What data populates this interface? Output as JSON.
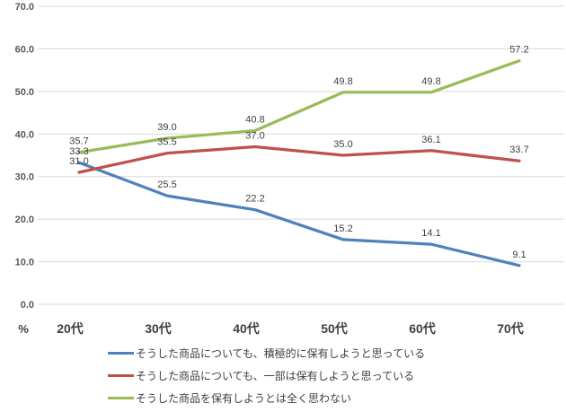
{
  "chart_data": {
    "type": "line",
    "categories": [
      "20代",
      "30代",
      "40代",
      "50代",
      "60代",
      "70代"
    ],
    "series": [
      {
        "name": "そうした商品についても、積極的に保有しようと思っている",
        "color": "#4F81BD",
        "values": [
          33.3,
          25.5,
          22.2,
          15.2,
          14.1,
          9.1
        ]
      },
      {
        "name": "そうした商品についても、一部は保有しようと思っている",
        "color": "#C0504D",
        "values": [
          31.0,
          35.5,
          37.0,
          35.0,
          36.1,
          33.7
        ]
      },
      {
        "name": "そうした商品を保有しようとは全く思わない",
        "color": "#9BBB59",
        "values": [
          35.7,
          39.0,
          40.8,
          49.8,
          49.8,
          57.2
        ]
      }
    ],
    "yticks": [
      0,
      10,
      20,
      30,
      40,
      50,
      60,
      70
    ],
    "ytick_labels": [
      "0.0",
      "10.0",
      "20.0",
      "30.0",
      "40.0",
      "50.0",
      "60.0",
      "70.0"
    ],
    "ylim": [
      0,
      70
    ],
    "ylabel": "%",
    "grid": true,
    "legend_position": "bottom",
    "data_labels": true,
    "colors": {
      "gridline": "#D9D9D9",
      "tick_text": "#595959",
      "label_text": "#404040"
    }
  }
}
